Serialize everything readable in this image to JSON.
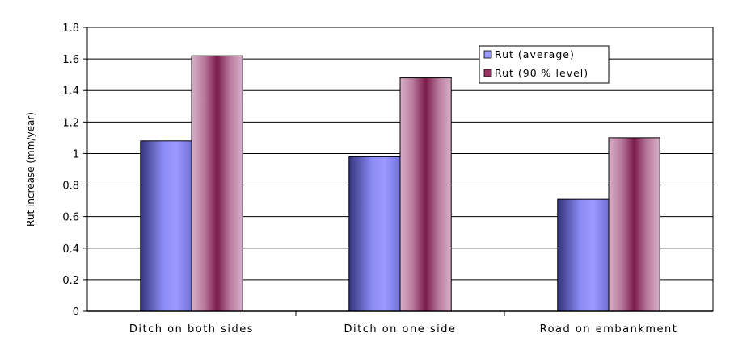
{
  "chart_data": {
    "type": "bar",
    "categories": [
      "Ditch on both sides",
      "Ditch on one side",
      "Road on embankment"
    ],
    "series": [
      {
        "name": "Rut (average)",
        "values": [
          1.08,
          0.98,
          0.71
        ]
      },
      {
        "name": "Rut (90 % level)",
        "values": [
          1.62,
          1.48,
          1.1
        ]
      }
    ],
    "title": "",
    "xlabel": "",
    "ylabel": "Rut increase (mm/year)",
    "ylim": [
      0,
      1.8
    ],
    "yticks": [
      "0",
      "0.2",
      "0.4",
      "0.6",
      "0.8",
      "1",
      "1.2",
      "1.4",
      "1.6",
      "1.8"
    ],
    "grid": true,
    "legend_position": "top-right",
    "colors": {
      "average": "#9999ff",
      "level90": "#993366"
    }
  }
}
